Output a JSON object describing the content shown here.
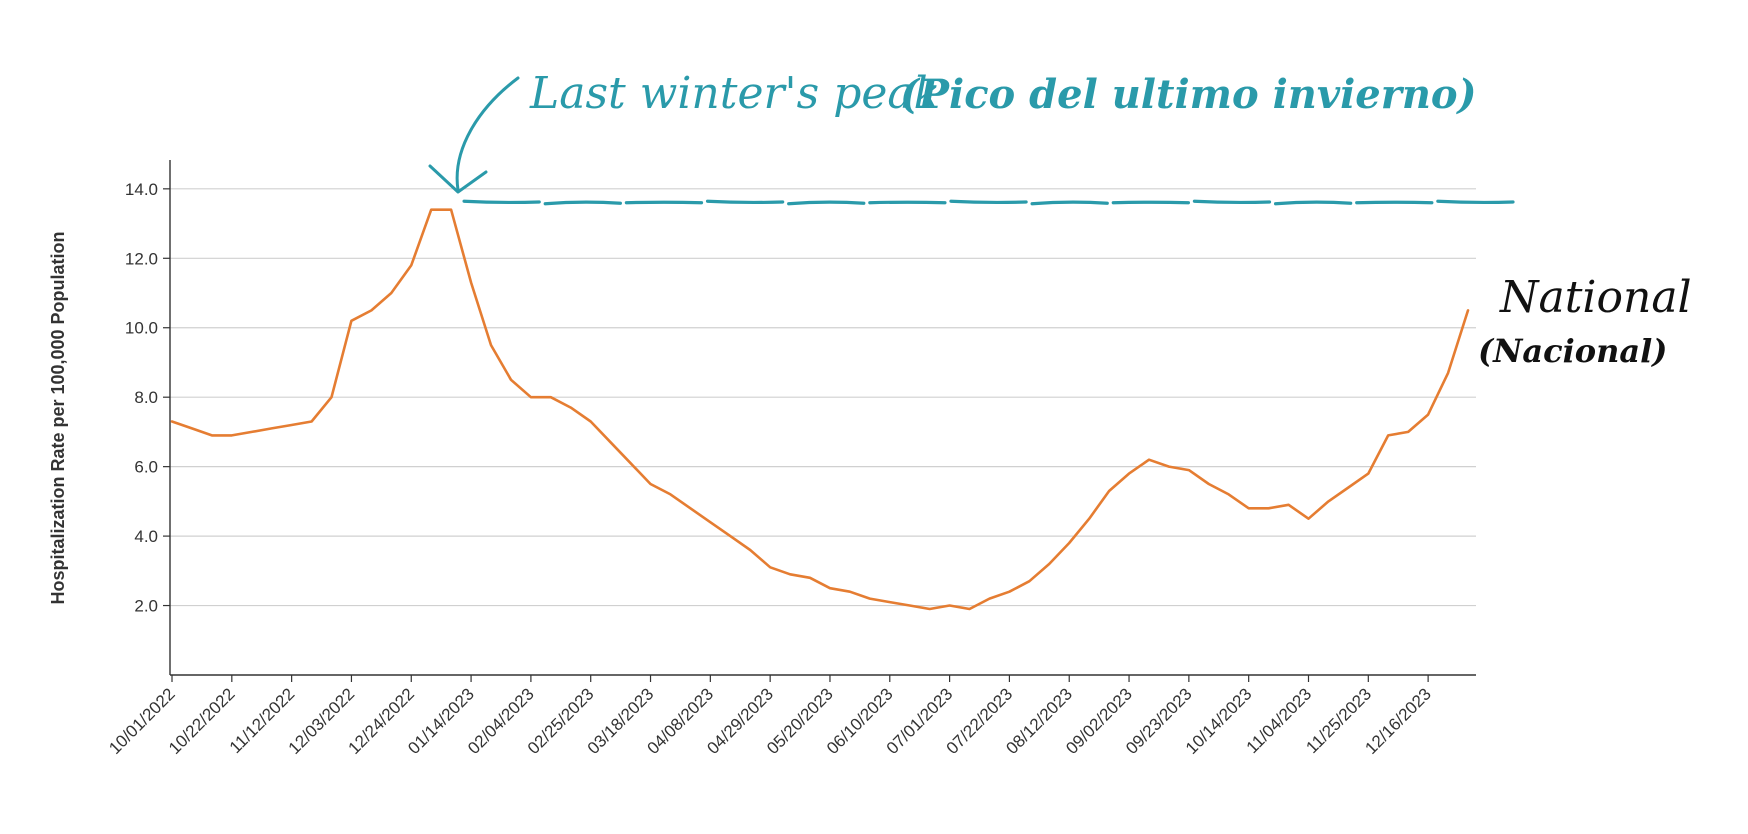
{
  "chart_data": {
    "type": "line",
    "title": "",
    "xlabel": "",
    "ylabel": "Hospitalization Rate per 100,000 Population",
    "ylim": [
      0,
      14.6
    ],
    "yticks": [
      "2.0",
      "4.0",
      "6.0",
      "8.0",
      "10.0",
      "12.0",
      "14.0"
    ],
    "xtick_labels": [
      "10/01/2022",
      "10/22/2022",
      "11/12/2022",
      "12/03/2022",
      "12/24/2022",
      "01/14/2023",
      "02/04/2023",
      "02/25/2023",
      "03/18/2023",
      "04/08/2023",
      "04/29/2023",
      "05/20/2023",
      "06/10/2023",
      "07/01/2023",
      "07/22/2023",
      "08/12/2023",
      "09/02/2023",
      "09/23/2023",
      "10/14/2023",
      "11/04/2023",
      "11/25/2023",
      "12/16/2023"
    ],
    "grid": true,
    "series": [
      {
        "name": "National (Nacional)",
        "color": "#e57d32",
        "x": [
          "10/01/2022",
          "10/08/2022",
          "10/15/2022",
          "10/22/2022",
          "10/29/2022",
          "11/05/2022",
          "11/12/2022",
          "11/19/2022",
          "11/26/2022",
          "12/03/2022",
          "12/10/2022",
          "12/17/2022",
          "12/24/2022",
          "12/31/2022",
          "01/07/2023",
          "01/14/2023",
          "01/21/2023",
          "01/28/2023",
          "02/04/2023",
          "02/11/2023",
          "02/18/2023",
          "02/25/2023",
          "03/04/2023",
          "03/11/2023",
          "03/18/2023",
          "03/25/2023",
          "04/01/2023",
          "04/08/2023",
          "04/15/2023",
          "04/22/2023",
          "04/29/2023",
          "05/06/2023",
          "05/13/2023",
          "05/20/2023",
          "05/27/2023",
          "06/03/2023",
          "06/10/2023",
          "06/17/2023",
          "06/24/2023",
          "07/01/2023",
          "07/08/2023",
          "07/15/2023",
          "07/22/2023",
          "07/29/2023",
          "08/05/2023",
          "08/12/2023",
          "08/19/2023",
          "08/26/2023",
          "09/02/2023",
          "09/09/2023",
          "09/16/2023",
          "09/23/2023",
          "09/30/2023",
          "10/07/2023",
          "10/14/2023",
          "10/21/2023",
          "10/28/2023",
          "11/04/2023",
          "11/11/2023",
          "11/18/2023",
          "11/25/2023",
          "12/02/2023",
          "12/09/2023",
          "12/16/2023",
          "12/23/2023",
          "12/30/2023"
        ],
        "values": [
          7.3,
          7.1,
          6.9,
          6.9,
          7.0,
          7.1,
          7.2,
          7.3,
          8.0,
          10.2,
          10.5,
          11.0,
          11.8,
          13.4,
          13.4,
          11.3,
          9.5,
          8.5,
          8.0,
          8.0,
          7.7,
          7.3,
          6.7,
          6.1,
          5.5,
          5.2,
          4.8,
          4.4,
          4.0,
          3.6,
          3.1,
          2.9,
          2.8,
          2.5,
          2.4,
          2.2,
          2.1,
          2.0,
          1.9,
          2.0,
          1.9,
          2.2,
          2.4,
          2.7,
          3.2,
          3.8,
          4.5,
          5.3,
          5.8,
          6.2,
          6.0,
          5.9,
          5.5,
          5.2,
          4.8,
          4.8,
          4.9,
          4.5,
          5.0,
          5.4,
          5.8,
          6.9,
          7.0,
          7.5,
          8.7,
          10.5
        ]
      }
    ],
    "reference_line": {
      "value": 13.6,
      "color": "#2a9aaa",
      "from_x": "01/14/2023"
    },
    "annotations": {
      "peak_label": "Last winter's peak",
      "peak_label_es": "(Pico del ultimo invierno)",
      "series_label": "National",
      "series_label_es": "(Nacional)"
    }
  }
}
